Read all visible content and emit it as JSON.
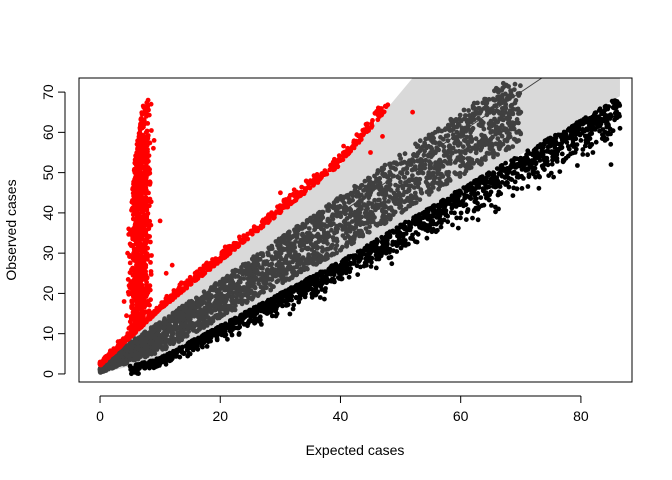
{
  "chart_data": {
    "type": "scatter",
    "title": "",
    "xlabel": "Expected cases",
    "ylabel": "Observed cases",
    "xlim": [
      -3.5,
      88.5
    ],
    "ylim": [
      -2,
      73.5
    ],
    "xticks": [
      0,
      20,
      40,
      60,
      80
    ],
    "yticks": [
      0,
      10,
      20,
      30,
      40,
      50,
      60,
      70
    ],
    "grid": false,
    "legend": "none",
    "colors": {
      "band": "#d9d9d9",
      "inside": "#404040",
      "below": "#000000",
      "above": "#ff0000",
      "reference_line": "#404040"
    },
    "reference_line": {
      "from": [
        0,
        0
      ],
      "to": [
        73.5,
        73.5
      ]
    },
    "series": [
      {
        "role": "prediction-band",
        "lower": [
          [
            0,
            0
          ],
          [
            10,
            4
          ],
          [
            20,
            12
          ],
          [
            40,
            28
          ],
          [
            60,
            46
          ],
          [
            80,
            63
          ],
          [
            86.5,
            69
          ]
        ],
        "upper": [
          [
            0,
            2
          ],
          [
            10,
            16
          ],
          [
            20,
            28
          ],
          [
            40,
            52
          ],
          [
            52,
            73.5
          ],
          [
            86.5,
            73.5
          ]
        ]
      },
      {
        "role": "points-inside-band",
        "x": [
          2,
          5,
          8,
          12,
          15,
          20,
          25,
          30,
          35,
          40,
          45,
          50,
          55,
          60,
          62,
          65,
          68,
          70
        ],
        "y": [
          2,
          5,
          7,
          11,
          14,
          20,
          24,
          29,
          34,
          40,
          45,
          50,
          55,
          59,
          56,
          60,
          63,
          65
        ]
      },
      {
        "role": "points-below-band",
        "x": [
          10,
          20,
          30,
          40,
          50,
          60,
          70,
          75,
          80,
          82,
          84,
          85,
          86.5
        ],
        "y": [
          3,
          11,
          20,
          27,
          37,
          45,
          49,
          55,
          58,
          55,
          58,
          52,
          61
        ]
      },
      {
        "role": "points-above-band",
        "x": [
          3,
          4,
          5,
          6,
          7,
          7.5,
          8,
          8.5,
          9,
          10,
          11,
          12,
          15,
          20,
          25,
          30,
          35,
          40,
          45,
          47,
          52
        ],
        "y": [
          8,
          18,
          35,
          50,
          62,
          66,
          68,
          67,
          58,
          38,
          25,
          27,
          24,
          28,
          35,
          45,
          48,
          53,
          55,
          59,
          65
        ]
      }
    ]
  }
}
